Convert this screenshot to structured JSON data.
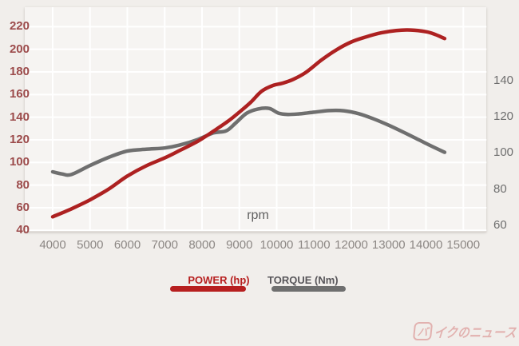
{
  "chart_data": {
    "type": "line",
    "title": "",
    "x_unit": "rpm",
    "x_ticks": [
      4000,
      5000,
      6000,
      7000,
      8000,
      9000,
      10000,
      11000,
      12000,
      13000,
      14000,
      15000
    ],
    "left_axis": {
      "unit": "hp",
      "ticks": [
        220,
        200,
        180,
        160,
        140,
        120,
        100,
        80,
        60,
        40
      ]
    },
    "right_axis": {
      "unit": "Nm",
      "ticks": [
        140,
        120,
        100,
        80,
        60
      ]
    },
    "series": [
      {
        "name": "TORQUE (Nm)",
        "axis": "right",
        "color": "#6f6f6f",
        "points": [
          [
            4000,
            89.5
          ],
          [
            4250,
            88.3
          ],
          [
            4500,
            88
          ],
          [
            5000,
            93
          ],
          [
            5500,
            97.5
          ],
          [
            6000,
            101
          ],
          [
            6500,
            102
          ],
          [
            7000,
            102.7
          ],
          [
            7400,
            104.3
          ],
          [
            7900,
            107.5
          ],
          [
            8300,
            111
          ],
          [
            8650,
            112.2
          ],
          [
            8900,
            116.5
          ],
          [
            9200,
            122
          ],
          [
            9500,
            124.3
          ],
          [
            9800,
            124.6
          ],
          [
            10050,
            122
          ],
          [
            10300,
            121.3
          ],
          [
            10600,
            121.6
          ],
          [
            11000,
            122.5
          ],
          [
            11400,
            123.4
          ],
          [
            11800,
            123.3
          ],
          [
            12200,
            121.7
          ],
          [
            12600,
            118.8
          ],
          [
            13000,
            115.3
          ],
          [
            13400,
            111.4
          ],
          [
            13800,
            107.3
          ],
          [
            14150,
            103.7
          ],
          [
            14500,
            100.3
          ]
        ]
      },
      {
        "name": "POWER (hp)",
        "axis": "left",
        "color": "#ad2121",
        "points": [
          [
            4000,
            52
          ],
          [
            4500,
            59
          ],
          [
            5000,
            67
          ],
          [
            5500,
            76.5
          ],
          [
            6000,
            88
          ],
          [
            6500,
            97
          ],
          [
            7000,
            104
          ],
          [
            7400,
            110.5
          ],
          [
            7900,
            119
          ],
          [
            8300,
            127.5
          ],
          [
            8700,
            136.5
          ],
          [
            9000,
            144.5
          ],
          [
            9300,
            153
          ],
          [
            9600,
            163
          ],
          [
            9900,
            168
          ],
          [
            10150,
            170
          ],
          [
            10450,
            173.5
          ],
          [
            10800,
            180
          ],
          [
            11200,
            190.5
          ],
          [
            11600,
            199.5
          ],
          [
            12000,
            206.5
          ],
          [
            12400,
            211
          ],
          [
            12800,
            214.5
          ],
          [
            13200,
            216.5
          ],
          [
            13600,
            217
          ],
          [
            14000,
            215.5
          ],
          [
            14250,
            213
          ],
          [
            14500,
            209.5
          ]
        ]
      }
    ]
  },
  "legend": {
    "items": [
      {
        "label": "POWER (hp)",
        "color": "#b71f1f"
      },
      {
        "label": "TORQUE (Nm)",
        "color": "#6f6f6f"
      }
    ]
  },
  "watermark": {
    "badge_char": "バ",
    "text": "イクのニュース",
    "color": "rgba(197,62,62,0.35)"
  },
  "colors": {
    "left_tick": "#9c4b4b",
    "right_tick": "#6e6e6e",
    "x_tick": "#8c8784",
    "rpm_label": "#5f5f5f",
    "gridline": "#ffffff",
    "legend_power_text": "#b71f1f",
    "legend_torque_text": "#58565a"
  }
}
